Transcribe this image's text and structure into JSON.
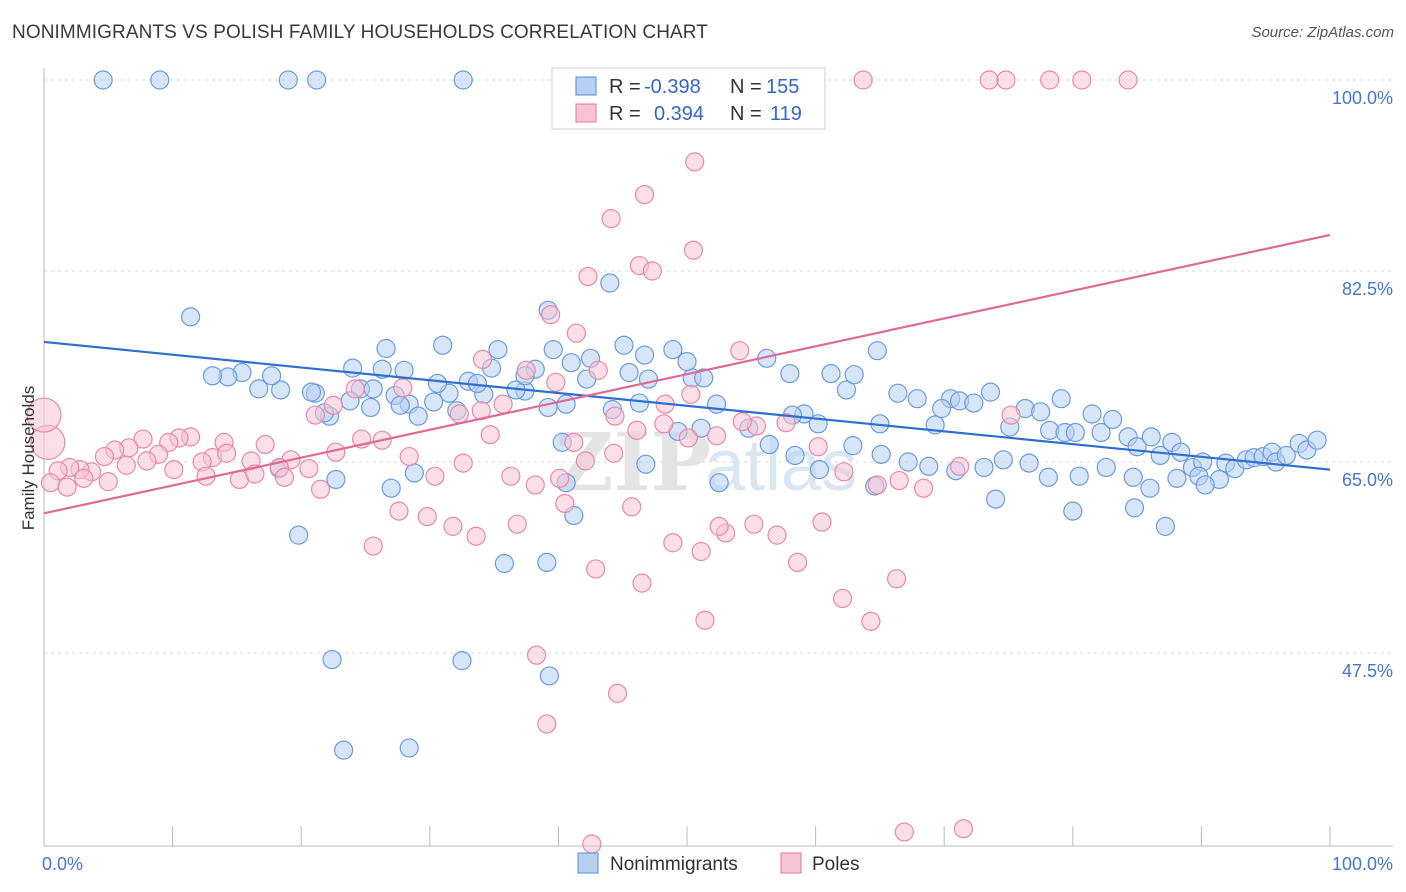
{
  "title": "NONIMMIGRANTS VS POLISH FAMILY HOUSEHOLDS CORRELATION CHART",
  "source": "Source: ZipAtlas.com",
  "watermark": {
    "zip": "ZIP",
    "atlas": "atlas"
  },
  "chart_data": {
    "type": "scatter",
    "xlabel": "",
    "ylabel": "Family Households",
    "xlim": [
      0,
      100
    ],
    "ylim": [
      29,
      101.5
    ],
    "x_tick_labels": {
      "left": "0.0%",
      "right": "100.0%"
    },
    "y_ticks": [
      {
        "value": 100,
        "label": "100.0%"
      },
      {
        "value": 82.5,
        "label": "82.5%"
      },
      {
        "value": 65,
        "label": "65.0%"
      },
      {
        "value": 47.5,
        "label": "47.5%"
      }
    ],
    "legend": {
      "r_label": "R =",
      "n_label": "N =",
      "entries": [
        {
          "r": "-0.398",
          "n": "155"
        },
        {
          "r": "0.394",
          "n": "119"
        }
      ]
    },
    "series": [
      {
        "name": "Nonimmigrants",
        "color": "#6a9be0",
        "fill": "#b7d0f2",
        "trend": {
          "x": [
            0,
            100
          ],
          "y": [
            76.0,
            64.3
          ]
        },
        "points": [
          [
            4.6,
            100
          ],
          [
            9,
            100
          ],
          [
            19,
            100
          ],
          [
            21.2,
            100
          ],
          [
            32.6,
            100
          ],
          [
            11.4,
            78.3
          ],
          [
            28.4,
            70.3
          ],
          [
            26.6,
            75.4
          ],
          [
            31,
            75.7
          ],
          [
            35.3,
            75.3
          ],
          [
            39.2,
            78.9
          ],
          [
            44,
            81.4
          ],
          [
            39.6,
            75.3
          ],
          [
            45.1,
            75.7
          ],
          [
            39.2,
            70
          ],
          [
            41,
            74.1
          ],
          [
            48.9,
            75.3
          ],
          [
            50.4,
            72.7
          ],
          [
            47,
            72.6
          ],
          [
            42.5,
            74.5
          ],
          [
            38.2,
            73.5
          ],
          [
            34.8,
            73.6
          ],
          [
            34.2,
            71.2
          ],
          [
            33,
            72.4
          ],
          [
            31.5,
            71.3
          ],
          [
            30.6,
            72.2
          ],
          [
            26.3,
            73.5
          ],
          [
            24.6,
            71.7
          ],
          [
            25.6,
            71.7
          ],
          [
            24,
            73.6
          ],
          [
            27.3,
            71.1
          ],
          [
            28,
            73.4
          ],
          [
            45.5,
            73.2
          ],
          [
            46.7,
            74.8
          ],
          [
            50,
            74.2
          ],
          [
            51.3,
            72.7
          ],
          [
            52.3,
            70.3
          ],
          [
            56.2,
            74.5
          ],
          [
            59.1,
            69.4
          ],
          [
            58.2,
            69.3
          ],
          [
            58,
            73.1
          ],
          [
            60.2,
            68.5
          ],
          [
            61.2,
            73.1
          ],
          [
            62.4,
            71.6
          ],
          [
            63,
            73
          ],
          [
            64.8,
            75.2
          ],
          [
            65,
            68.5
          ],
          [
            66.4,
            71.3
          ],
          [
            67.9,
            70.8
          ],
          [
            69.3,
            68.4
          ],
          [
            70.5,
            70.8
          ],
          [
            69.8,
            69.9
          ],
          [
            71.2,
            70.6
          ],
          [
            72.3,
            70.4
          ],
          [
            73.6,
            71.4
          ],
          [
            75.1,
            68.2
          ],
          [
            76.3,
            69.9
          ],
          [
            77.5,
            69.6
          ],
          [
            78.2,
            67.9
          ],
          [
            79.1,
            70.8
          ],
          [
            79.4,
            67.7
          ],
          [
            80.2,
            67.7
          ],
          [
            81.5,
            69.4
          ],
          [
            82.2,
            67.7
          ],
          [
            83.1,
            68.9
          ],
          [
            84.3,
            67.3
          ],
          [
            85,
            66.4
          ],
          [
            86.1,
            67.3
          ],
          [
            86.8,
            65.6
          ],
          [
            87.7,
            66.8
          ],
          [
            88.4,
            65.9
          ],
          [
            89.3,
            64.5
          ],
          [
            90.1,
            65
          ],
          [
            91.4,
            63.4
          ],
          [
            91.9,
            64.9
          ],
          [
            92.6,
            64.4
          ],
          [
            93.5,
            65.2
          ],
          [
            94.1,
            65.4
          ],
          [
            94.8,
            65.5
          ],
          [
            95.5,
            65.9
          ],
          [
            95.8,
            65
          ],
          [
            96.6,
            65.6
          ],
          [
            97.6,
            66.7
          ],
          [
            98.2,
            66.1
          ],
          [
            99,
            67
          ],
          [
            89.8,
            63.7
          ],
          [
            90.3,
            62.9
          ],
          [
            88.1,
            63.5
          ],
          [
            86,
            62.6
          ],
          [
            84.7,
            63.6
          ],
          [
            82.6,
            64.5
          ],
          [
            80.5,
            63.7
          ],
          [
            78.1,
            63.6
          ],
          [
            76.6,
            64.9
          ],
          [
            74.6,
            65.2
          ],
          [
            73.1,
            64.5
          ],
          [
            70.9,
            64.2
          ],
          [
            68.8,
            64.6
          ],
          [
            67.2,
            65
          ],
          [
            65.1,
            65.7
          ],
          [
            62.9,
            66.5
          ],
          [
            60.3,
            64.3
          ],
          [
            58.4,
            65.6
          ],
          [
            56.4,
            66.6
          ],
          [
            54.8,
            68.1
          ],
          [
            51.1,
            68.1
          ],
          [
            49.3,
            67.8
          ],
          [
            46.3,
            70.4
          ],
          [
            44.2,
            69.8
          ],
          [
            42.2,
            72.6
          ],
          [
            40.6,
            70.3
          ],
          [
            37.4,
            71.5
          ],
          [
            36.7,
            71.6
          ],
          [
            33.7,
            72.2
          ],
          [
            32.1,
            69.7
          ],
          [
            30.3,
            70.5
          ],
          [
            29.1,
            69.2
          ],
          [
            27.7,
            70.2
          ],
          [
            25.4,
            70
          ],
          [
            23.8,
            70.6
          ],
          [
            22.2,
            69.2
          ],
          [
            21.8,
            69.5
          ],
          [
            21.1,
            71.3
          ],
          [
            20.8,
            71.4
          ],
          [
            18.4,
            71.6
          ],
          [
            17.7,
            72.9
          ],
          [
            16.7,
            71.7
          ],
          [
            15.4,
            73.2
          ],
          [
            14.3,
            72.8
          ],
          [
            13.1,
            72.9
          ],
          [
            28.8,
            64
          ],
          [
            27,
            62.6
          ],
          [
            22.7,
            63.4
          ],
          [
            35.8,
            55.7
          ],
          [
            41.2,
            60.1
          ],
          [
            40.3,
            66.8
          ],
          [
            37.4,
            72.9
          ],
          [
            19.8,
            58.3
          ],
          [
            18.3,
            64.4
          ],
          [
            32.5,
            46.8
          ],
          [
            22.4,
            46.9
          ],
          [
            28.4,
            38.8
          ],
          [
            23.3,
            38.6
          ],
          [
            39.3,
            45.4
          ],
          [
            39.1,
            55.8
          ],
          [
            40.6,
            63.1
          ],
          [
            46.8,
            64.8
          ],
          [
            52.5,
            63.1
          ],
          [
            64.6,
            62.8
          ],
          [
            74,
            61.6
          ],
          [
            80,
            60.5
          ],
          [
            84.8,
            60.8
          ],
          [
            87.2,
            59.1
          ]
        ]
      },
      {
        "name": "Poles",
        "color": "#e888a8",
        "fill": "#f8c3d4",
        "trend": {
          "x": [
            0,
            100
          ],
          "y": [
            60.3,
            85.8
          ]
        },
        "points": [
          [
            63.7,
            100
          ],
          [
            73.5,
            100
          ],
          [
            74.8,
            100
          ],
          [
            78.2,
            100
          ],
          [
            80.7,
            100
          ],
          [
            84.3,
            100
          ],
          [
            50.6,
            92.5
          ],
          [
            46.7,
            89.5
          ],
          [
            44.1,
            87.3
          ],
          [
            46.3,
            83
          ],
          [
            50.5,
            84.4
          ],
          [
            42.3,
            82
          ],
          [
            47.3,
            82.5
          ],
          [
            39.4,
            78.5
          ],
          [
            41.4,
            76.8
          ],
          [
            54.1,
            75.2
          ],
          [
            34.1,
            74.4
          ],
          [
            43.1,
            73.4
          ],
          [
            37.5,
            73.4
          ],
          [
            50.3,
            71.2
          ],
          [
            35.7,
            70.3
          ],
          [
            34,
            69.7
          ],
          [
            32.3,
            69.4
          ],
          [
            27.9,
            71.8
          ],
          [
            24.2,
            71.7
          ],
          [
            22.5,
            70.2
          ],
          [
            21.1,
            69.3
          ],
          [
            39.8,
            72.3
          ],
          [
            41.2,
            66.8
          ],
          [
            44.4,
            69.2
          ],
          [
            48.3,
            70.3
          ],
          [
            55.4,
            68.3
          ],
          [
            57.7,
            68.6
          ],
          [
            60.2,
            66.4
          ],
          [
            62.2,
            64.1
          ],
          [
            64.8,
            62.9
          ],
          [
            66.5,
            63.3
          ],
          [
            68.4,
            62.6
          ],
          [
            71.2,
            64.6
          ],
          [
            75.2,
            69.3
          ],
          [
            19.2,
            65.2
          ],
          [
            18.3,
            64.5
          ],
          [
            17.2,
            66.6
          ],
          [
            16.1,
            65.1
          ],
          [
            15.2,
            63.4
          ],
          [
            14,
            66.8
          ],
          [
            13.1,
            65.4
          ],
          [
            12.3,
            65
          ],
          [
            11.4,
            67.3
          ],
          [
            10.5,
            67.2
          ],
          [
            9.7,
            66.8
          ],
          [
            8.9,
            65.7
          ],
          [
            7.7,
            67.1
          ],
          [
            6.6,
            66.3
          ],
          [
            5.5,
            66.1
          ],
          [
            4.7,
            65.5
          ],
          [
            3.7,
            64.1
          ],
          [
            2.8,
            64.3
          ],
          [
            2,
            64.5
          ],
          [
            1.1,
            64.2
          ],
          [
            0.3,
            66.8
          ],
          [
            0,
            69.3
          ],
          [
            0.5,
            63.1
          ],
          [
            1.8,
            62.7
          ],
          [
            3.1,
            63.5
          ],
          [
            5,
            63.2
          ],
          [
            6.4,
            64.7
          ],
          [
            8,
            65.1
          ],
          [
            10.1,
            64.3
          ],
          [
            12.6,
            63.7
          ],
          [
            14.2,
            65.8
          ],
          [
            16.4,
            63.9
          ],
          [
            18.7,
            63.6
          ],
          [
            20.6,
            64.4
          ],
          [
            22.7,
            65.9
          ],
          [
            24.7,
            67.1
          ],
          [
            26.3,
            67
          ],
          [
            28.4,
            65.5
          ],
          [
            30.4,
            63.7
          ],
          [
            32.6,
            64.9
          ],
          [
            34.7,
            67.5
          ],
          [
            36.3,
            63.7
          ],
          [
            38.2,
            62.9
          ],
          [
            40.1,
            63.5
          ],
          [
            42.1,
            65.1
          ],
          [
            44.3,
            65.8
          ],
          [
            46.1,
            67.9
          ],
          [
            48.2,
            68.5
          ],
          [
            50.1,
            67.2
          ],
          [
            52.3,
            67.4
          ],
          [
            54.3,
            68.7
          ],
          [
            21.5,
            62.5
          ],
          [
            25.6,
            57.3
          ],
          [
            27.6,
            60.5
          ],
          [
            29.8,
            60
          ],
          [
            31.8,
            59.1
          ],
          [
            33.6,
            58.2
          ],
          [
            36.8,
            59.3
          ],
          [
            40.5,
            61.2
          ],
          [
            45.7,
            60.9
          ],
          [
            48.9,
            57.6
          ],
          [
            51.1,
            56.8
          ],
          [
            53,
            58.5
          ],
          [
            55.2,
            59.3
          ],
          [
            57,
            58.3
          ],
          [
            58.6,
            55.8
          ],
          [
            60.5,
            59.5
          ],
          [
            62.1,
            52.5
          ],
          [
            64.3,
            50.4
          ],
          [
            66.3,
            54.3
          ],
          [
            52.5,
            59.1
          ],
          [
            42.9,
            55.2
          ],
          [
            46.5,
            53.9
          ],
          [
            51.4,
            50.5
          ],
          [
            38.3,
            47.3
          ],
          [
            39.1,
            41
          ],
          [
            44.6,
            43.8
          ],
          [
            42.6,
            30
          ],
          [
            66.9,
            31.1
          ],
          [
            71.5,
            31.4
          ]
        ]
      }
    ]
  },
  "bottom_legend": [
    {
      "label": "Nonimmigrants"
    },
    {
      "label": "Poles"
    }
  ]
}
